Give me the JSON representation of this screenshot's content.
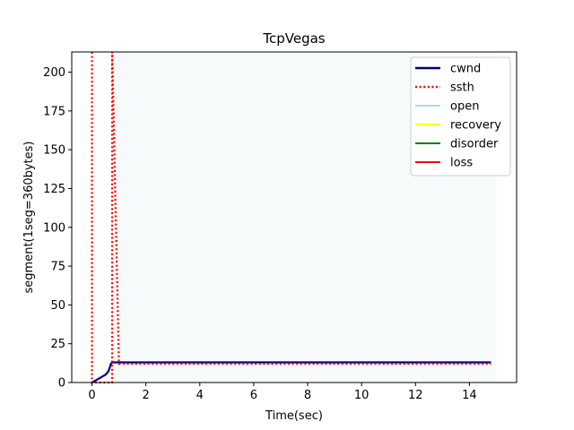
{
  "chart_data": {
    "type": "line",
    "title": "TcpVegas",
    "xlabel": "Time(sec)",
    "ylabel": "segment(1seg=360bytes)",
    "xlim": [
      -0.75,
      15.75
    ],
    "ylim": [
      0,
      213
    ],
    "xticks": [
      0,
      2,
      4,
      6,
      8,
      10,
      12,
      14
    ],
    "yticks": [
      0,
      25,
      50,
      75,
      100,
      125,
      150,
      175,
      200
    ],
    "legend_position": "top-right",
    "grid": false,
    "series": [
      {
        "name": "cwnd",
        "color": "#00007f",
        "style": "solid",
        "x": [
          0,
          0.1,
          0.2,
          0.3,
          0.4,
          0.5,
          0.6,
          0.65,
          0.7,
          0.75,
          1.0,
          5,
          10,
          14.8
        ],
        "y": [
          0,
          1,
          2,
          3,
          4,
          5,
          7,
          9,
          12,
          13,
          13,
          13,
          13,
          13
        ]
      },
      {
        "name": "ssth",
        "color": "#ff0000",
        "style": "dotted",
        "x": [
          0,
          0,
          0.75,
          0.75,
          1.0,
          14.8
        ],
        "y": [
          213,
          0,
          0,
          213,
          12,
          12
        ]
      }
    ],
    "state_spans": [
      {
        "name": "open",
        "color": "#add8e6",
        "from": 0.75,
        "to": 15
      }
    ],
    "legend": [
      {
        "name": "cwnd",
        "color": "#00007f",
        "style": "solid"
      },
      {
        "name": "ssth",
        "color": "#ff0000",
        "style": "dotted"
      },
      {
        "name": "open",
        "color": "#add8e6",
        "style": "solid"
      },
      {
        "name": "recovery",
        "color": "#ffff00",
        "style": "solid"
      },
      {
        "name": "disorder",
        "color": "#008000",
        "style": "solid"
      },
      {
        "name": "loss",
        "color": "#ff0000",
        "style": "solid"
      }
    ]
  }
}
